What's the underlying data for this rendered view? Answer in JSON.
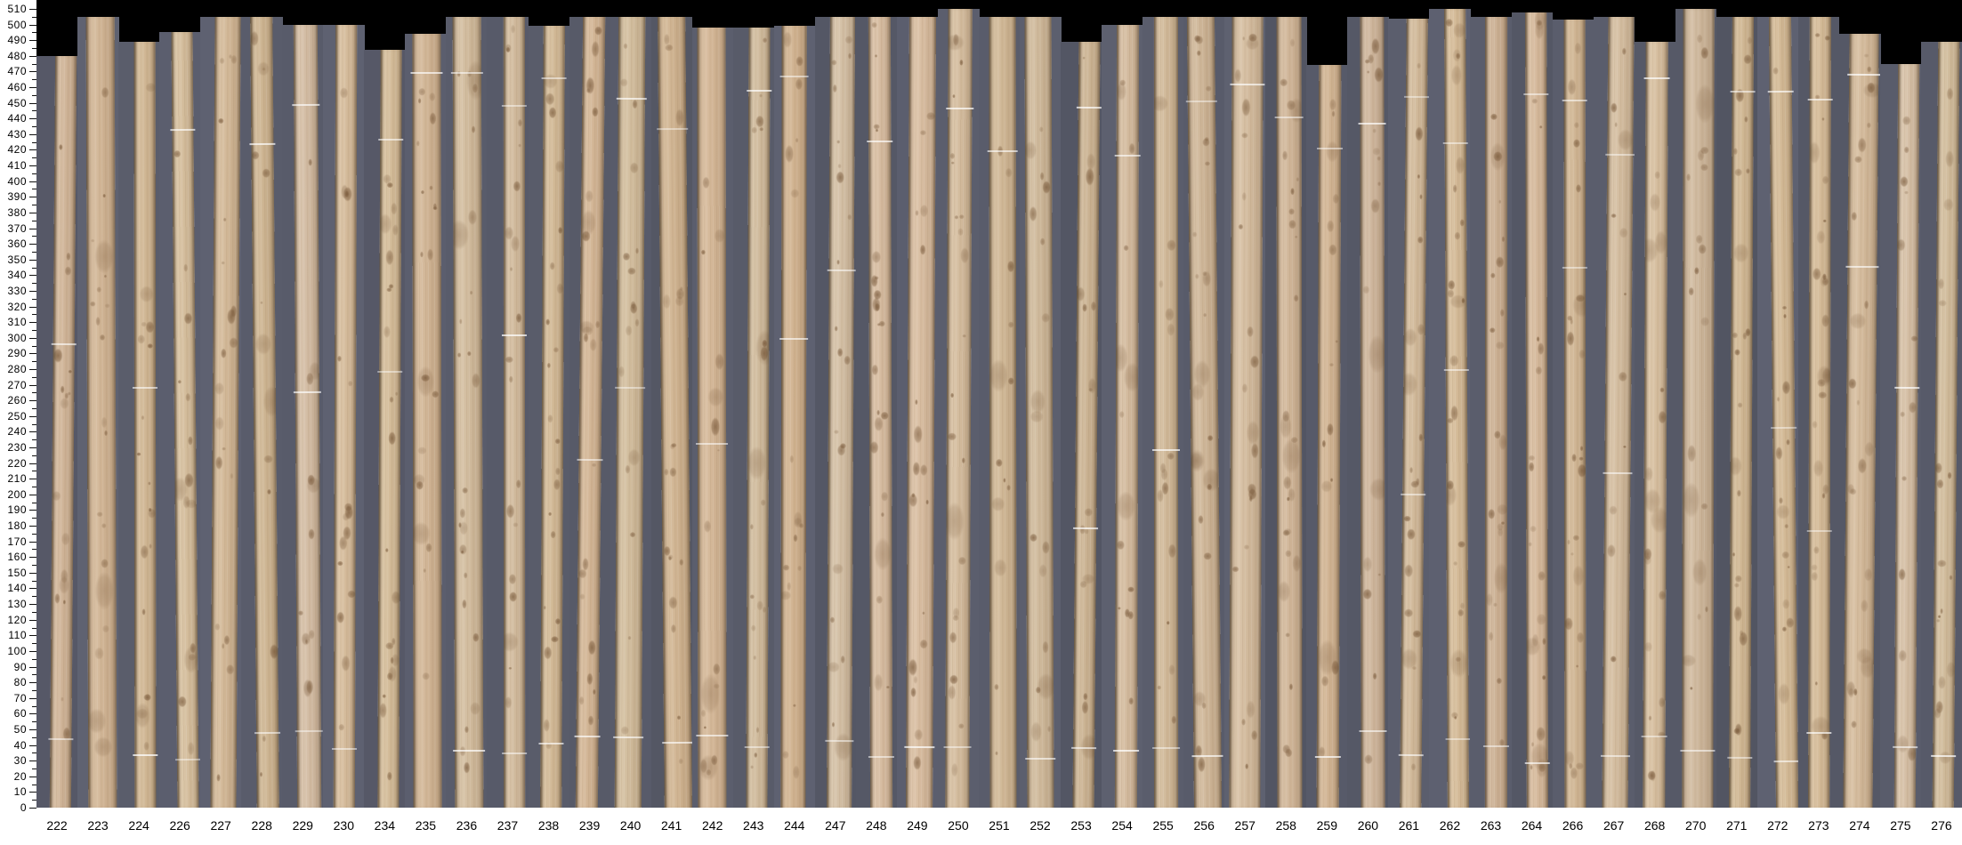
{
  "chart_data": {
    "type": "bar",
    "title": "",
    "xlabel": "",
    "ylabel": "",
    "categories": [
      "222",
      "223",
      "224",
      "226",
      "227",
      "228",
      "229",
      "230",
      "234",
      "235",
      "236",
      "237",
      "238",
      "239",
      "240",
      "241",
      "242",
      "243",
      "244",
      "247",
      "248",
      "249",
      "250",
      "251",
      "252",
      "253",
      "254",
      "255",
      "256",
      "257",
      "258",
      "259",
      "260",
      "261",
      "262",
      "263",
      "264",
      "266",
      "267",
      "268",
      "270",
      "271",
      "272",
      "273",
      "274",
      "275",
      "276"
    ],
    "values": [
      480,
      505,
      489,
      495,
      505,
      505,
      500,
      500,
      484,
      494,
      505,
      505,
      499,
      505,
      505,
      505,
      498,
      498,
      499,
      505,
      505,
      505,
      510,
      505,
      505,
      489,
      500,
      505,
      505,
      505,
      505,
      474,
      505,
      504,
      510,
      505,
      508,
      503,
      505,
      489,
      510,
      505,
      505,
      505,
      494,
      475,
      489
    ],
    "ylim": [
      0,
      510
    ],
    "ytick_major": 10,
    "ytick_minor": 5,
    "legend": null,
    "grid": false,
    "colors": {
      "plot_background": "#000000",
      "scan_backing": "#5c5f70",
      "wood_base": "#d9c1a0",
      "knot": "#76553a",
      "chalk_line": "#ffffff",
      "axis_text": "#000000",
      "page_background": "#ffffff"
    }
  }
}
